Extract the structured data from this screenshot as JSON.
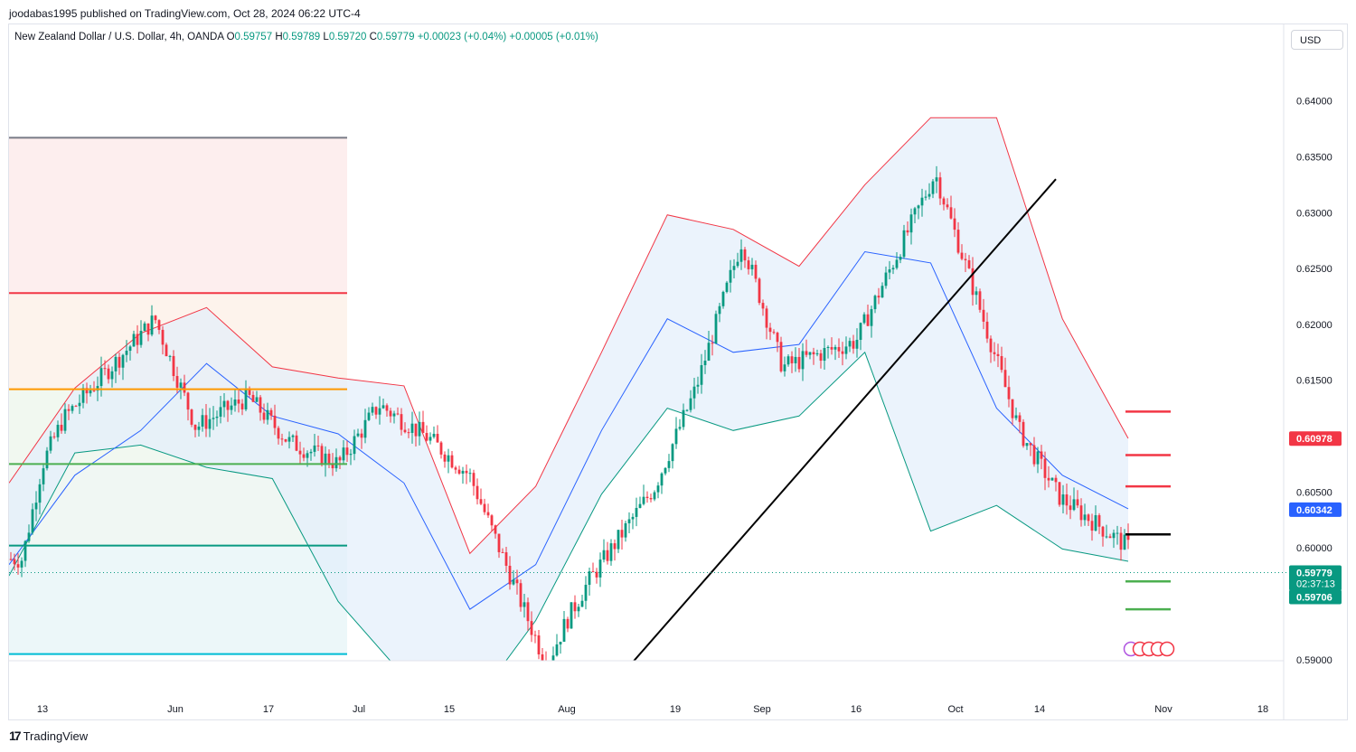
{
  "header": {
    "publisher_line": "joodabas1995 published on TradingView.com, Oct 28, 2024 06:22 UTC-4",
    "symbol": "New Zealand Dollar / U.S. Dollar, 4h, OANDA",
    "o_label": "O",
    "o_value": "0.59757",
    "h_label": "H",
    "h_value": "0.59789",
    "l_label": "L",
    "l_value": "0.59720",
    "c_label": "C",
    "c_value": "0.59779",
    "change": "+0.00023 (+0.04%)",
    "change2": "+0.00005 (+0.01%)",
    "currency_button": "USD"
  },
  "footer": {
    "brand": "TradingView",
    "logo_icon": "tradingview-logo-icon"
  },
  "colors": {
    "up": "#089981",
    "down": "#f23645",
    "basis": "#2962ff",
    "upper_band": "#f23645",
    "lower_band": "#089981",
    "band_fill": "#e3eefb",
    "trendline": "#000000"
  },
  "chart_data": {
    "type": "candlestick",
    "symbol": "NZDUSD",
    "timeframe": "4h",
    "ylim": [
      0.5899,
      0.6445
    ],
    "y_ticks": [
      "0.64000",
      "0.63500",
      "0.63000",
      "0.62500",
      "0.62000",
      "0.61500",
      "0.60500",
      "0.60000",
      "0.59000"
    ],
    "x_ticks": [
      "13",
      "Jun",
      "17",
      "Jul",
      "15",
      "Aug",
      "19",
      "Sep",
      "16",
      "Oct",
      "14",
      "Nov",
      "18"
    ],
    "last_price": {
      "value": "0.59779",
      "countdown": "02:37:13"
    },
    "price_badges": [
      {
        "value": "0.60978",
        "color": "#f23645"
      },
      {
        "value": "0.60342",
        "color": "#2962ff"
      },
      {
        "value": "0.59706",
        "color": "#089981"
      }
    ],
    "close_path": [
      [
        "13",
        0.599
      ],
      [
        "13",
        0.6075
      ],
      [
        "13",
        0.6115
      ],
      [
        "Jun",
        0.6205
      ],
      [
        "Jun",
        0.6108
      ],
      [
        "17",
        0.6135
      ],
      [
        "17",
        0.6095
      ],
      [
        "Jul",
        0.6075
      ],
      [
        "Jul",
        0.6128
      ],
      [
        "15",
        0.6098
      ],
      [
        "15",
        0.6065
      ],
      [
        "Aug",
        0.5895
      ],
      [
        "Aug",
        0.5935
      ],
      [
        "Aug",
        0.5968
      ],
      [
        "19",
        0.6055
      ],
      [
        "19",
        0.6142
      ],
      [
        "Sep",
        0.6275
      ],
      [
        "Sep",
        0.6162
      ],
      [
        "16",
        0.6185
      ],
      [
        "Oct",
        0.6335
      ],
      [
        "Oct",
        0.6225
      ],
      [
        "14",
        0.6105
      ],
      [
        "14",
        0.6045
      ],
      [
        "Nov",
        0.5978
      ]
    ],
    "bollinger": {
      "upper": [
        0.6058,
        0.6143,
        0.6192,
        0.6215,
        0.6162,
        0.6152,
        0.6145,
        0.5995,
        0.6055,
        0.6175,
        0.6298,
        0.6285,
        0.6252,
        0.6325,
        0.6385,
        0.6385,
        0.6205,
        0.6098
      ],
      "basis": [
        0.5985,
        0.6065,
        0.6105,
        0.6165,
        0.6118,
        0.6102,
        0.6058,
        0.5945,
        0.5985,
        0.6105,
        0.6205,
        0.6175,
        0.6182,
        0.6265,
        0.6255,
        0.6125,
        0.6065,
        0.6035
      ],
      "lower": [
        0.5975,
        0.6085,
        0.6092,
        0.6072,
        0.6062,
        0.5952,
        0.5885,
        0.5855,
        0.5935,
        0.6048,
        0.6125,
        0.6105,
        0.6118,
        0.6175,
        0.6015,
        0.6038,
        0.5999,
        0.5988
      ]
    },
    "horizontal_levels": [
      {
        "value": 0.6367,
        "color": "#787b86"
      },
      {
        "value": 0.6228,
        "color": "#f23645"
      },
      {
        "value": 0.6142,
        "color": "#ff9800"
      },
      {
        "value": 0.6075,
        "color": "#4caf50"
      },
      {
        "value": 0.6002,
        "color": "#089981"
      },
      {
        "value": 0.5905,
        "color": "#00bcd4"
      }
    ],
    "projected_levels": [
      {
        "value": 0.6122,
        "color": "#f23645"
      },
      {
        "value": 0.6083,
        "color": "#f23645"
      },
      {
        "value": 0.6055,
        "color": "#f23645"
      },
      {
        "value": 0.6012,
        "color": "#000000"
      },
      {
        "value": 0.597,
        "color": "#4caf50"
      },
      {
        "value": 0.5945,
        "color": "#4caf50"
      }
    ],
    "trendline": {
      "from": [
        "Aug",
        0.5895
      ],
      "to": [
        "Oct",
        0.633
      ]
    },
    "grid": false,
    "legend": "top-left"
  }
}
